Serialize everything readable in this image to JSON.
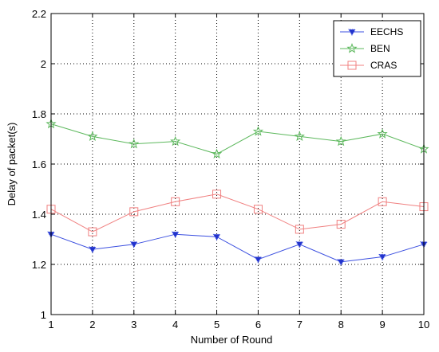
{
  "chart_data": {
    "type": "line",
    "title": "",
    "xlabel": "Number of Round",
    "ylabel": "Delay of packet(s)",
    "x": [
      1,
      2,
      3,
      4,
      5,
      6,
      7,
      8,
      9,
      10
    ],
    "xlim": [
      1,
      10
    ],
    "ylim": [
      1,
      2.2
    ],
    "xticks": [
      "1",
      "2",
      "3",
      "4",
      "5",
      "6",
      "7",
      "8",
      "9",
      "10"
    ],
    "yticks": [
      "1",
      "1.2",
      "1.4",
      "1.6",
      "1.8",
      "2",
      "2.2"
    ],
    "grid": true,
    "legend_position": "top-right",
    "series": [
      {
        "name": "EECHS",
        "marker": "triangle",
        "color": "#3b4fe0",
        "values": [
          1.32,
          1.26,
          1.28,
          1.32,
          1.31,
          1.22,
          1.28,
          1.21,
          1.23,
          1.28
        ]
      },
      {
        "name": "BEN",
        "marker": "star",
        "color": "#5cb85c",
        "values": [
          1.76,
          1.71,
          1.68,
          1.69,
          1.64,
          1.73,
          1.71,
          1.69,
          1.72,
          1.66
        ]
      },
      {
        "name": "CRAS",
        "marker": "square",
        "color": "#f08080",
        "values": [
          1.42,
          1.33,
          1.41,
          1.45,
          1.48,
          1.42,
          1.34,
          1.36,
          1.45,
          1.43
        ]
      }
    ]
  }
}
